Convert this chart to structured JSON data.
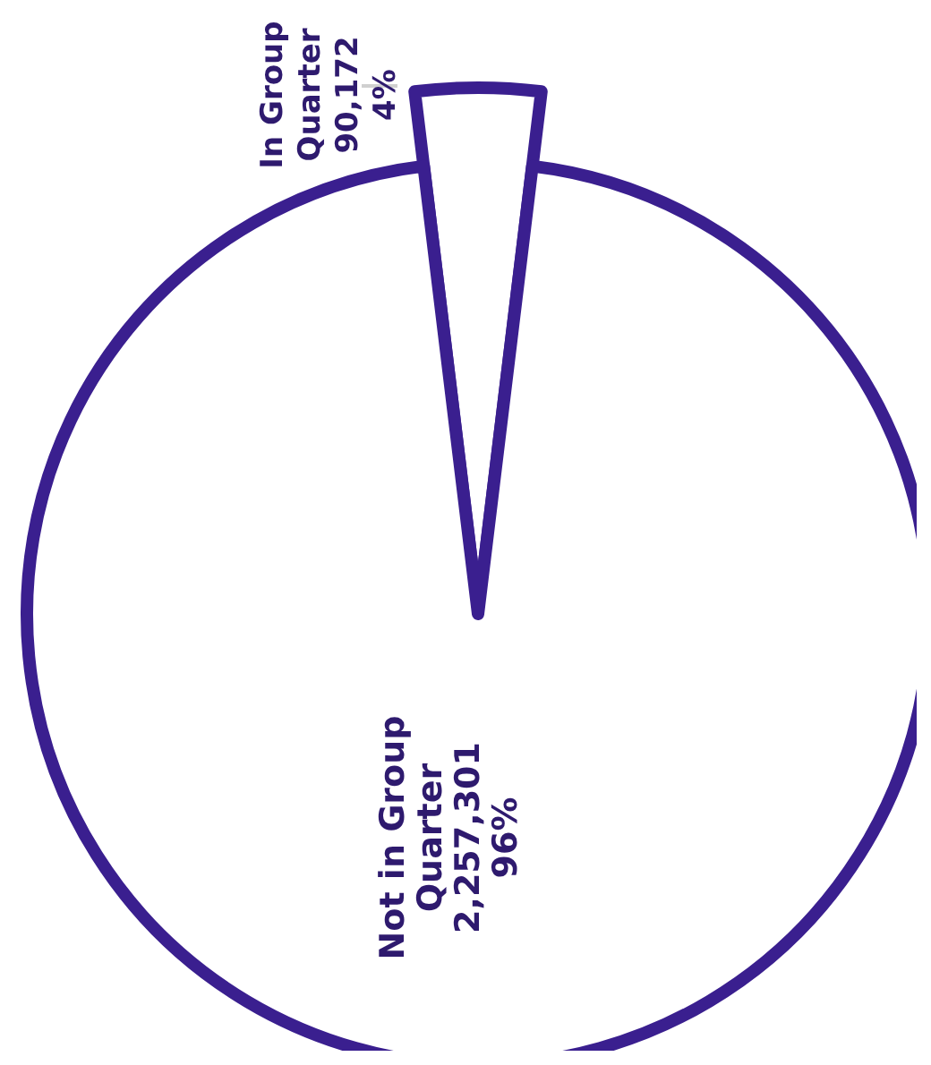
{
  "chart_data": {
    "type": "pie",
    "categories": [
      "In Group Quarter",
      "Not in Group Quarter"
    ],
    "values": [
      90172,
      2257301
    ],
    "colors": [
      "#3a1f8f",
      "#3a1f8f"
    ],
    "value_labels": [
      "90,172\n4%",
      "2,257,301\n96%"
    ]
  }
}
